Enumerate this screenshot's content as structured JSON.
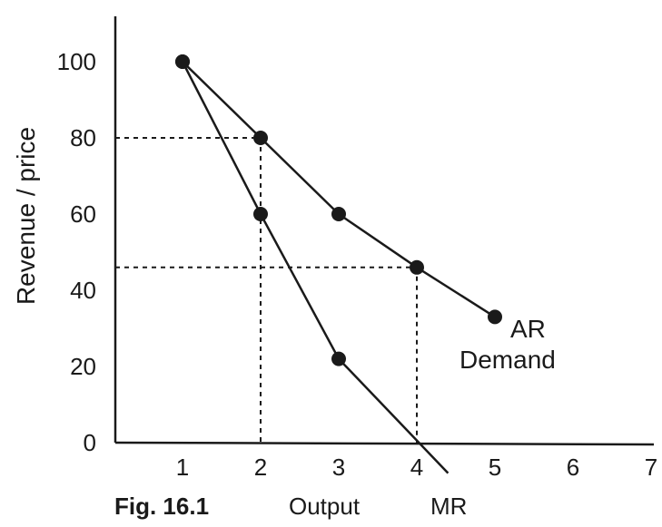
{
  "chart_data": {
    "type": "line",
    "title": "",
    "xlabel": "Output",
    "ylabel": "Revenue / price",
    "figure_label": "Fig. 16.1",
    "xlim": [
      0,
      7
    ],
    "ylim": [
      0,
      100
    ],
    "x_ticks": [
      "1",
      "2",
      "3",
      "4",
      "5",
      "6",
      "7"
    ],
    "y_ticks": [
      "0",
      "20",
      "40",
      "60",
      "80",
      "100"
    ],
    "grid": false,
    "series": [
      {
        "name": "AR Demand",
        "label_lines": [
          "AR",
          "Demand"
        ],
        "x": [
          1,
          2,
          3,
          4,
          5
        ],
        "y": [
          100,
          80,
          60,
          46,
          33
        ],
        "color": "#1a1a1a"
      },
      {
        "name": "MR",
        "x": [
          1,
          2,
          3,
          4.4
        ],
        "y": [
          100,
          60,
          22,
          -8
        ],
        "marker_x": [
          1,
          2,
          3
        ],
        "marker_y": [
          100,
          60,
          22
        ],
        "color": "#1a1a1a"
      }
    ],
    "guides": [
      {
        "x": 2,
        "y": 80
      },
      {
        "x": 4,
        "y": 46
      }
    ]
  }
}
